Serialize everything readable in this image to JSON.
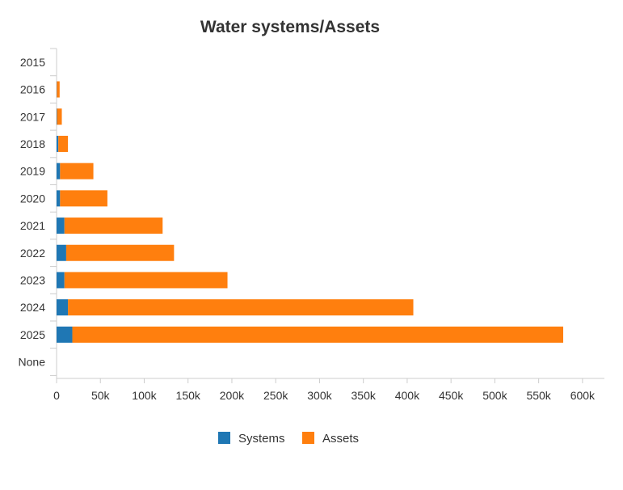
{
  "chart_data": {
    "type": "bar",
    "orientation": "horizontal",
    "stacked": true,
    "title": "Water systems/Assets",
    "categories": [
      "2015",
      "2016",
      "2017",
      "2018",
      "2019",
      "2020",
      "2021",
      "2022",
      "2023",
      "2024",
      "2025",
      "None"
    ],
    "series": [
      {
        "name": "Systems",
        "color": "#1f77b4",
        "values": [
          0,
          300,
          500,
          2000,
          4000,
          4000,
          9000,
          11000,
          9000,
          13000,
          18000,
          0
        ]
      },
      {
        "name": "Assets",
        "color": "#ff7f0e",
        "values": [
          0,
          3200,
          5500,
          11000,
          38000,
          54000,
          112000,
          123000,
          186000,
          394000,
          560000,
          0
        ]
      }
    ],
    "xlim": [
      0,
      625000
    ],
    "xticks": [
      {
        "value": 0,
        "label": "0"
      },
      {
        "value": 50000,
        "label": "50k"
      },
      {
        "value": 100000,
        "label": "100k"
      },
      {
        "value": 150000,
        "label": "150k"
      },
      {
        "value": 200000,
        "label": "200k"
      },
      {
        "value": 250000,
        "label": "250k"
      },
      {
        "value": 300000,
        "label": "300k"
      },
      {
        "value": 350000,
        "label": "350k"
      },
      {
        "value": 400000,
        "label": "400k"
      },
      {
        "value": 450000,
        "label": "450k"
      },
      {
        "value": 500000,
        "label": "500k"
      },
      {
        "value": 550000,
        "label": "550k"
      },
      {
        "value": 600000,
        "label": "600k"
      }
    ],
    "grid": false,
    "legend": "bottom-center"
  }
}
